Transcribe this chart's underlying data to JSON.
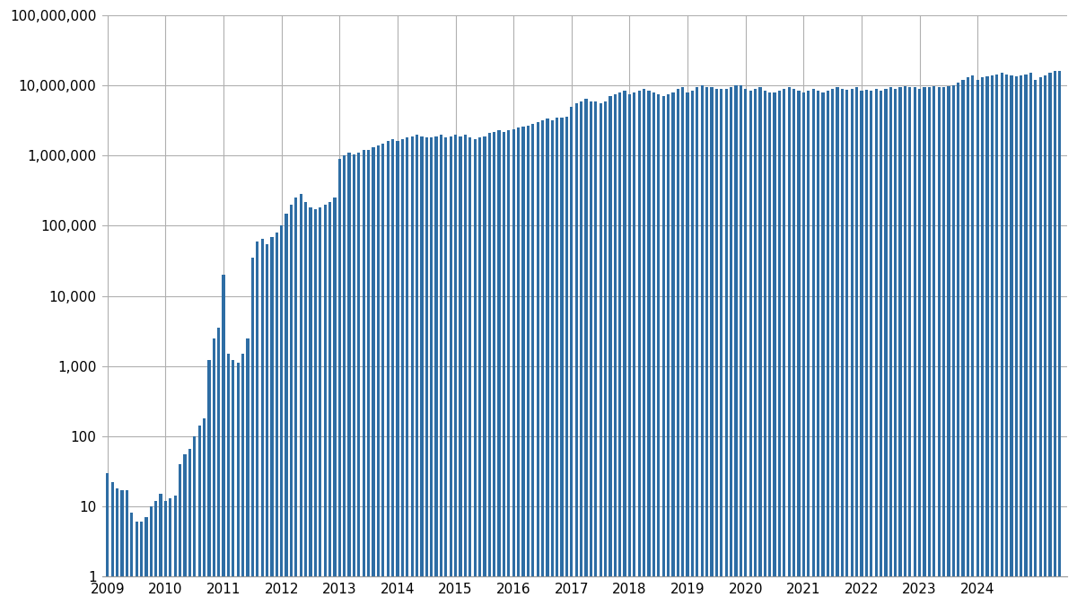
{
  "bar_color": "#2e6da4",
  "background_color": "#ffffff",
  "grid_color": "#b0b0b0",
  "ylim": [
    1,
    100000000
  ],
  "yticks": [
    1,
    10,
    100,
    1000,
    10000,
    100000,
    1000000,
    10000000,
    100000000
  ],
  "ytick_labels": [
    "1",
    "10",
    "100",
    "1,000",
    "10,000",
    "100,000",
    "1,000,000",
    "10,000,000",
    "100,000,000"
  ],
  "xtick_years": [
    "2009",
    "2010",
    "2011",
    "2012",
    "2013",
    "2014",
    "2015",
    "2016",
    "2017",
    "2018",
    "2019",
    "2020",
    "2021",
    "2022",
    "2023",
    "2024"
  ],
  "start_year": 2009,
  "monthly_values": [
    30,
    22,
    18,
    17,
    17,
    8,
    6,
    6,
    7,
    10,
    12,
    15,
    12,
    13,
    14,
    40,
    55,
    65,
    100,
    140,
    180,
    1200,
    2500,
    3500,
    20000,
    1500,
    1200,
    1100,
    1500,
    2500,
    35000,
    60000,
    65000,
    55000,
    70000,
    80000,
    100000,
    150000,
    200000,
    250000,
    280000,
    220000,
    180000,
    170000,
    180000,
    200000,
    220000,
    250000,
    900000,
    1000000,
    1100000,
    1050000,
    1100000,
    1200000,
    1200000,
    1300000,
    1400000,
    1500000,
    1600000,
    1700000,
    1600000,
    1700000,
    1800000,
    1900000,
    2000000,
    1900000,
    1800000,
    1800000,
    1900000,
    2000000,
    1800000,
    1900000,
    2000000,
    1900000,
    2000000,
    1800000,
    1700000,
    1800000,
    1900000,
    2100000,
    2200000,
    2300000,
    2200000,
    2300000,
    2400000,
    2500000,
    2600000,
    2700000,
    2800000,
    3000000,
    3200000,
    3400000,
    3200000,
    3500000,
    3500000,
    3600000,
    5000000,
    5500000,
    6000000,
    6500000,
    6000000,
    6000000,
    5500000,
    6000000,
    7000000,
    7500000,
    8000000,
    8500000,
    7500000,
    8000000,
    8500000,
    9000000,
    8500000,
    8000000,
    7500000,
    7000000,
    7500000,
    8000000,
    9000000,
    9500000,
    8000000,
    8500000,
    9500000,
    10000000,
    9500000,
    9500000,
    9000000,
    9000000,
    9000000,
    9500000,
    10000000,
    10000000,
    9000000,
    8500000,
    9000000,
    9500000,
    8500000,
    8000000,
    8000000,
    8500000,
    9000000,
    9500000,
    9000000,
    8500000,
    8000000,
    8500000,
    9000000,
    8500000,
    8000000,
    8500000,
    9000000,
    9500000,
    9000000,
    8800000,
    9000000,
    9500000,
    8500000,
    8800000,
    8500000,
    9000000,
    8500000,
    9000000,
    9500000,
    9000000,
    9500000,
    9800000,
    9500000,
    9500000,
    9000000,
    9500000,
    9500000,
    9800000,
    9500000,
    9500000,
    9800000,
    10000000,
    11000000,
    12000000,
    13000000,
    14000000,
    12000000,
    13000000,
    13500000,
    14000000,
    14500000,
    15000000,
    14500000,
    14000000,
    13500000,
    14000000,
    14500000,
    15000000,
    12000000,
    13000000,
    14000000,
    15000000,
    16000000,
    16000000
  ]
}
